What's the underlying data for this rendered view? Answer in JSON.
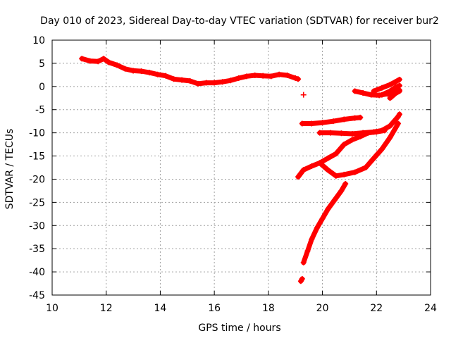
{
  "chart_data": {
    "type": "scatter",
    "title": "Day 010 of 2023, Sidereal Day-to-day VTEC variation (SDTVAR) for receiver bur2",
    "xlabel": "GPS time / hours",
    "ylabel": "SDTVAR / TECUs",
    "xlim": [
      10,
      24
    ],
    "ylim": [
      -45,
      10
    ],
    "xticks": [
      "10",
      "12",
      "14",
      "16",
      "18",
      "20",
      "22",
      "24"
    ],
    "yticks": [
      "10",
      "5",
      "0",
      "-5",
      "-10",
      "-15",
      "-20",
      "-25",
      "-30",
      "-35",
      "-40",
      "-45"
    ],
    "grid": true,
    "marker": "plus",
    "series_color": "#ff0000",
    "series": [
      {
        "points": [
          [
            11.1,
            6.0
          ],
          [
            11.4,
            5.5
          ],
          [
            11.7,
            5.4
          ],
          [
            11.9,
            6.0
          ],
          [
            12.1,
            5.2
          ],
          [
            12.4,
            4.6
          ],
          [
            12.7,
            3.8
          ],
          [
            13.0,
            3.4
          ],
          [
            13.3,
            3.3
          ],
          [
            13.6,
            3.0
          ],
          [
            13.9,
            2.6
          ],
          [
            14.2,
            2.3
          ],
          [
            14.5,
            1.6
          ],
          [
            14.8,
            1.4
          ],
          [
            15.1,
            1.2
          ],
          [
            15.4,
            0.6
          ],
          [
            15.7,
            0.8
          ],
          [
            16.0,
            0.8
          ],
          [
            16.3,
            1.0
          ],
          [
            16.6,
            1.3
          ],
          [
            16.9,
            1.8
          ],
          [
            17.2,
            2.2
          ],
          [
            17.5,
            2.4
          ],
          [
            17.8,
            2.3
          ],
          [
            18.1,
            2.2
          ],
          [
            18.4,
            2.6
          ],
          [
            18.7,
            2.4
          ],
          [
            19.0,
            1.8
          ],
          [
            19.1,
            1.6
          ]
        ]
      },
      {
        "points": [
          [
            19.3,
            -1.8
          ]
        ]
      },
      {
        "points": [
          [
            19.25,
            -8.0
          ],
          [
            19.6,
            -8.0
          ],
          [
            20.0,
            -7.8
          ],
          [
            20.4,
            -7.5
          ],
          [
            20.8,
            -7.1
          ],
          [
            21.2,
            -6.8
          ],
          [
            21.4,
            -6.7
          ]
        ]
      },
      {
        "points": [
          [
            19.9,
            -10.0
          ],
          [
            20.3,
            -10.0
          ],
          [
            20.7,
            -10.1
          ],
          [
            21.1,
            -10.2
          ],
          [
            21.5,
            -10.0
          ],
          [
            21.9,
            -9.8
          ],
          [
            22.2,
            -9.5
          ],
          [
            22.5,
            -8.5
          ],
          [
            22.8,
            -6.5
          ],
          [
            22.85,
            -6.0
          ]
        ]
      },
      {
        "points": [
          [
            19.1,
            -19.5
          ],
          [
            19.3,
            -18.0
          ],
          [
            19.6,
            -17.2
          ],
          [
            19.9,
            -16.5
          ],
          [
            20.2,
            -15.5
          ],
          [
            20.5,
            -14.5
          ],
          [
            20.8,
            -12.5
          ],
          [
            21.1,
            -11.5
          ],
          [
            21.4,
            -10.8
          ],
          [
            21.7,
            -10.0
          ],
          [
            22.0,
            -9.8
          ],
          [
            22.3,
            -9.5
          ]
        ]
      },
      {
        "points": [
          [
            19.9,
            -16.5
          ],
          [
            20.2,
            -18.0
          ],
          [
            20.5,
            -19.3
          ],
          [
            20.8,
            -19.0
          ],
          [
            21.2,
            -18.5
          ],
          [
            21.6,
            -17.5
          ],
          [
            21.9,
            -15.5
          ],
          [
            22.2,
            -13.5
          ],
          [
            22.5,
            -11.0
          ],
          [
            22.8,
            -8.0
          ]
        ]
      },
      {
        "points": [
          [
            19.25,
            -41.5
          ],
          [
            19.2,
            -42.0
          ]
        ]
      },
      {
        "points": [
          [
            19.3,
            -38.0
          ],
          [
            19.45,
            -35.5
          ],
          [
            19.6,
            -33.0
          ],
          [
            19.8,
            -30.5
          ],
          [
            20.0,
            -28.5
          ],
          [
            20.2,
            -26.5
          ],
          [
            20.45,
            -24.5
          ],
          [
            20.7,
            -22.5
          ],
          [
            20.85,
            -21.0
          ]
        ]
      },
      {
        "points": [
          [
            21.2,
            -1.0
          ],
          [
            21.5,
            -1.4
          ],
          [
            21.8,
            -1.8
          ],
          [
            22.1,
            -1.9
          ],
          [
            22.4,
            -1.6
          ],
          [
            22.7,
            -1.2
          ],
          [
            22.85,
            -0.8
          ]
        ]
      },
      {
        "points": [
          [
            21.9,
            -1.0
          ],
          [
            22.2,
            -0.3
          ],
          [
            22.5,
            0.4
          ],
          [
            22.7,
            1.0
          ],
          [
            22.85,
            1.5
          ]
        ]
      },
      {
        "points": [
          [
            22.2,
            -1.8
          ],
          [
            22.5,
            -1.0
          ],
          [
            22.7,
            -0.2
          ],
          [
            22.85,
            0.2
          ]
        ]
      },
      {
        "points": [
          [
            22.5,
            -2.5
          ],
          [
            22.7,
            -1.5
          ],
          [
            22.85,
            -1.0
          ]
        ]
      }
    ]
  }
}
